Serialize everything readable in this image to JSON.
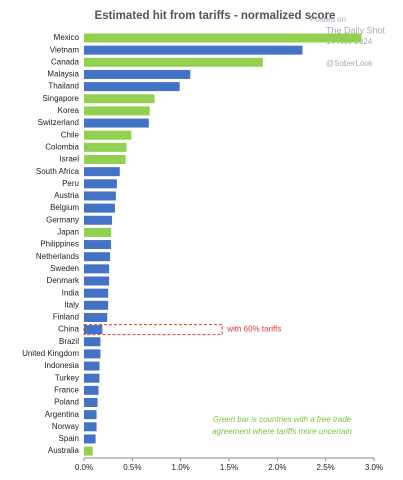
{
  "chart_data": {
    "type": "barh",
    "title": "Estimated hit from tariffs - normalized score",
    "categories": [
      "Mexico",
      "Vietnam",
      "Canada",
      "Malaysia",
      "Thailand",
      "Singapore",
      "Korea",
      "Switzerland",
      "Chile",
      "Colombia",
      "Israel",
      "South Africa",
      "Peru",
      "Austria",
      "Belgium",
      "Germany",
      "Japan",
      "Philippines",
      "Netherlands",
      "Sweden",
      "Denmark",
      "India",
      "Italy",
      "Finland",
      "China",
      "Brazil",
      "United Kingdom",
      "Indonesia",
      "Turkey",
      "France",
      "Poland",
      "Argentina",
      "Norway",
      "Spain",
      "Australia"
    ],
    "values": [
      2.87,
      2.26,
      1.85,
      1.1,
      0.99,
      0.73,
      0.68,
      0.67,
      0.49,
      0.44,
      0.43,
      0.37,
      0.34,
      0.33,
      0.32,
      0.29,
      0.28,
      0.28,
      0.27,
      0.26,
      0.26,
      0.25,
      0.25,
      0.24,
      0.19,
      0.17,
      0.17,
      0.16,
      0.16,
      0.15,
      0.14,
      0.13,
      0.13,
      0.12,
      0.09
    ],
    "colors": [
      "#92d050",
      "#4472c4",
      "#92d050",
      "#4472c4",
      "#4472c4",
      "#92d050",
      "#92d050",
      "#4472c4",
      "#92d050",
      "#92d050",
      "#92d050",
      "#4472c4",
      "#4472c4",
      "#4472c4",
      "#4472c4",
      "#4472c4",
      "#92d050",
      "#4472c4",
      "#4472c4",
      "#4472c4",
      "#4472c4",
      "#4472c4",
      "#4472c4",
      "#4472c4",
      "#4472c4",
      "#4472c4",
      "#4472c4",
      "#4472c4",
      "#4472c4",
      "#4472c4",
      "#4472c4",
      "#4472c4",
      "#4472c4",
      "#4472c4",
      "#92d050"
    ],
    "xlim": [
      0,
      3
    ],
    "xticks": [
      {
        "value": 0,
        "label": "0.0%"
      },
      {
        "value": 0.5,
        "label": "0.5%"
      },
      {
        "value": 1,
        "label": "1.0%"
      },
      {
        "value": 1.5,
        "label": "1.5%"
      },
      {
        "value": 2,
        "label": "2.0%"
      },
      {
        "value": 2.5,
        "label": "2.5%"
      },
      {
        "value": 3,
        "label": "3.0%"
      }
    ],
    "annotation": {
      "text": "with 60% tariffs",
      "category_index": 24,
      "value": 1.43
    },
    "note": [
      "Green bar is countries with a free trade",
      "agreement where tariffs more uncertain"
    ],
    "watermark": [
      "Posted on",
      "The Daily Shot",
      "14-Nov-2024",
      "@SoberLook"
    ]
  }
}
